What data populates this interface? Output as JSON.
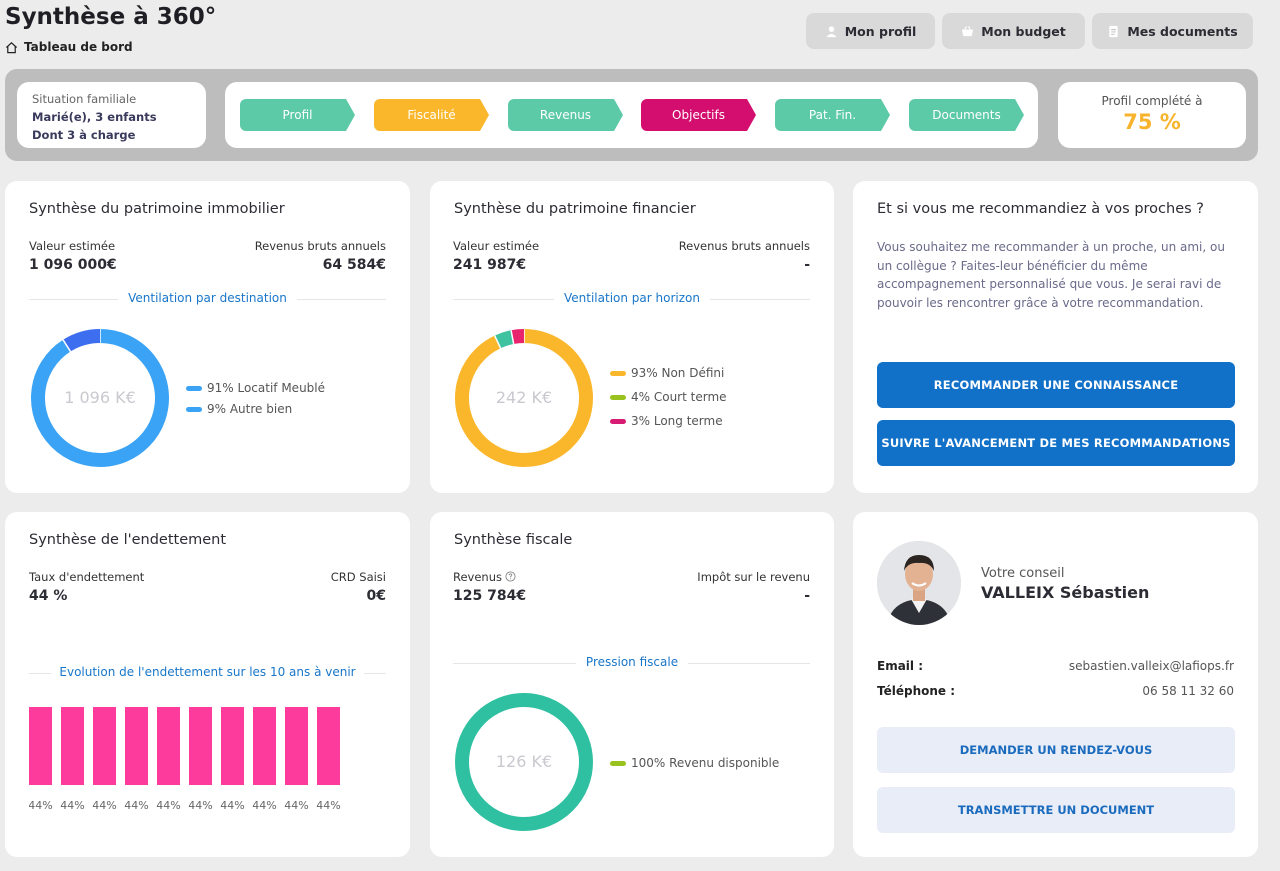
{
  "page": {
    "title": "Synthèse à 360°",
    "breadcrumb": "Tableau de bord"
  },
  "top_nav": {
    "profile_label": "Mon profil",
    "budget_label": "Mon budget",
    "documents_label": "Mes documents"
  },
  "situation": {
    "label": "Situation familiale",
    "line1": "Marié(e), 3 enfants",
    "line2": "Dont 3 à charge"
  },
  "steps": [
    {
      "label": "Profil",
      "color": "#5cc9a7"
    },
    {
      "label": "Fiscalité",
      "color": "#fbb72c"
    },
    {
      "label": "Revenus",
      "color": "#5cc9a7"
    },
    {
      "label": "Objectifs",
      "color": "#d30e6f"
    },
    {
      "label": "Pat. Fin.",
      "color": "#5cc9a7"
    },
    {
      "label": "Documents",
      "color": "#5cc9a7"
    }
  ],
  "profile_completion": {
    "label": "Profil complété à",
    "value": "75 %"
  },
  "immobilier": {
    "title": "Synthèse du patrimoine immobilier",
    "value_label": "Valeur estimée",
    "value": "1 096 000€",
    "income_label": "Revenus bruts annuels",
    "income": "64 584€",
    "section": "Ventilation par destination",
    "center": "1 096 K€",
    "legend": [
      {
        "label": "91% Locatif Meublé",
        "color": "#3aa3f5"
      },
      {
        "label": "9% Autre bien",
        "color": "#3aa3f5"
      }
    ]
  },
  "financier": {
    "title": "Synthèse du patrimoine financier",
    "value_label": "Valeur estimée",
    "value": "241 987€",
    "income_label": "Revenus bruts annuels",
    "income": "-",
    "section": "Ventilation par horizon",
    "center": "242 K€",
    "legend": [
      {
        "label": "93% Non Défini",
        "color": "#fbb72c"
      },
      {
        "label": "4% Court terme",
        "color": "#9ac21e"
      },
      {
        "label": "3% Long terme",
        "color": "#d81b73"
      }
    ]
  },
  "recommandation": {
    "title": "Et si vous me recommandiez à vos proches ?",
    "text": "Vous souhaitez me recommander à un proche, un ami, ou un collègue ? Faites-leur bénéficier du même accompagnement personnalisé que vous. Je serai ravi de pouvoir les rencontrer grâce à votre recommandation.",
    "btn1": "RECOMMANDER UNE CONNAISSANCE",
    "btn2": "SUIVRE L'AVANCEMENT DE MES RECOMMANDATIONS"
  },
  "endettement": {
    "title": "Synthèse de l'endettement",
    "rate_label": "Taux d'endettement",
    "rate": "44 %",
    "crd_label": "CRD Saisi",
    "crd": "0€",
    "section": "Evolution de l'endettement sur les 10 ans à venir"
  },
  "fiscale": {
    "title": "Synthèse fiscale",
    "income_label": "Revenus",
    "income": "125 784€",
    "tax_label": "Impôt sur le revenu",
    "tax": "-",
    "section": "Pression fiscale",
    "center": "126 K€",
    "legend": [
      {
        "label": "100% Revenu disponible",
        "color": "#9ac21e"
      }
    ]
  },
  "conseiller": {
    "label": "Votre conseil",
    "name": "VALLEIX Sébastien",
    "email_label": "Email :",
    "email": "sebastien.valleix@lafiops.fr",
    "phone_label": "Téléphone :",
    "phone": "06 58 11 32 60",
    "btn1": "DEMANDER UN RENDEZ-VOUS",
    "btn2": "TRANSMETTRE UN DOCUMENT"
  },
  "chart_data": [
    {
      "type": "pie",
      "chart": "immobilier",
      "labels": [
        "Locatif Meublé",
        "Autre bien"
      ],
      "values": [
        91,
        9
      ],
      "colors": [
        "#3aa3f5",
        "#3e6ef0"
      ]
    },
    {
      "type": "pie",
      "chart": "financier",
      "labels": [
        "Non Défini",
        "Court terme",
        "Long terme"
      ],
      "values": [
        93,
        4,
        3
      ],
      "colors": [
        "#fbb72c",
        "#3ec2a0",
        "#e8246f"
      ]
    },
    {
      "type": "bar",
      "chart": "endettement",
      "categories": [
        "",
        "",
        "",
        "",
        "",
        "",
        "",
        "",
        "",
        ""
      ],
      "values": [
        44,
        44,
        44,
        44,
        44,
        44,
        44,
        44,
        44,
        44
      ],
      "value_labels": [
        "44%",
        "44%",
        "44%",
        "44%",
        "44%",
        "44%",
        "44%",
        "44%",
        "44%",
        "44%"
      ],
      "color": "#fc3b9c"
    },
    {
      "type": "pie",
      "chart": "fiscale",
      "labels": [
        "Revenu disponible"
      ],
      "values": [
        100
      ],
      "colors": [
        "#2ec0a0"
      ]
    }
  ]
}
